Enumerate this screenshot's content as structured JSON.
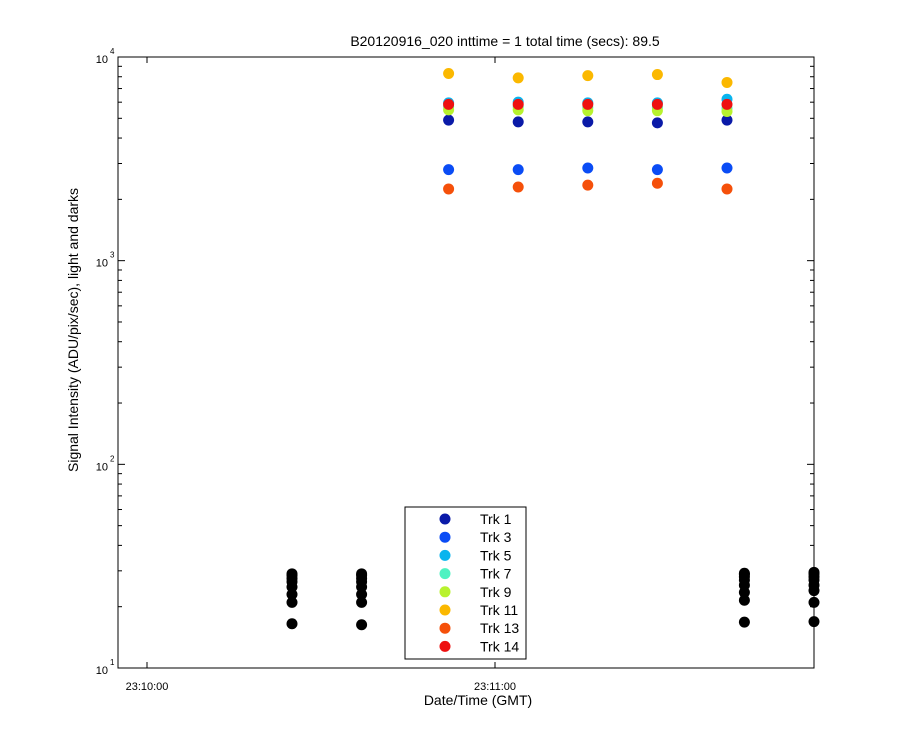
{
  "chart_data": {
    "type": "scatter",
    "title": "B20120916_020 inttime = 1 total time (secs): 89.5",
    "xlabel": "Date/Time (GMT)",
    "ylabel": "Signal Intensity (ADU/pix/sec), light and darks",
    "yscale": "log",
    "ylim": [
      10,
      10000
    ],
    "xlim": [
      "23:09:55",
      "23:11:55"
    ],
    "x_ticks": [
      "23:10:00",
      "23:11:00"
    ],
    "y_ticks": [
      {
        "base": "10",
        "exp": "1",
        "value": 10
      },
      {
        "base": "10",
        "exp": "2",
        "value": 100
      },
      {
        "base": "10",
        "exp": "3",
        "value": 1000
      },
      {
        "base": "10",
        "exp": "4",
        "value": 10000
      }
    ],
    "grid": false,
    "legend_position": "bottom-center",
    "series": [
      {
        "name": "Trk 1",
        "color": "#0a1aa8",
        "x": [
          "23:10:52",
          "23:11:04",
          "23:11:16",
          "23:11:28",
          "23:11:40"
        ],
        "y": [
          4900,
          4800,
          4800,
          4750,
          4900
        ]
      },
      {
        "name": "Trk 3",
        "color": "#0a4cf5",
        "x": [
          "23:10:52",
          "23:11:04",
          "23:11:16",
          "23:11:28",
          "23:11:40"
        ],
        "y": [
          2800,
          2800,
          2850,
          2800,
          2850
        ]
      },
      {
        "name": "Trk 5",
        "color": "#08b4ee",
        "x": [
          "23:10:52",
          "23:11:04",
          "23:11:16",
          "23:11:28",
          "23:11:40"
        ],
        "y": [
          5950,
          6000,
          5950,
          5950,
          6200
        ]
      },
      {
        "name": "Trk 7",
        "color": "#4ff2c2",
        "x": [
          "23:10:52",
          "23:11:04",
          "23:11:16",
          "23:11:28",
          "23:11:40"
        ],
        "y": [
          5700,
          5700,
          5650,
          5650,
          5600
        ]
      },
      {
        "name": "Trk 9",
        "color": "#b8f22e",
        "x": [
          "23:10:52",
          "23:11:04",
          "23:11:16",
          "23:11:28",
          "23:11:40"
        ],
        "y": [
          5500,
          5500,
          5450,
          5450,
          5400
        ]
      },
      {
        "name": "Trk 11",
        "color": "#fbb800",
        "x": [
          "23:10:52",
          "23:11:04",
          "23:11:16",
          "23:11:28",
          "23:11:40"
        ],
        "y": [
          8300,
          7900,
          8100,
          8200,
          7500
        ]
      },
      {
        "name": "Trk 13",
        "color": "#f5500a",
        "x": [
          "23:10:52",
          "23:11:04",
          "23:11:16",
          "23:11:28",
          "23:11:40"
        ],
        "y": [
          2250,
          2300,
          2350,
          2400,
          2250
        ]
      },
      {
        "name": "Trk 14",
        "color": "#ee1010",
        "x": [
          "23:10:52",
          "23:11:04",
          "23:11:16",
          "23:11:28",
          "23:11:40"
        ],
        "y": [
          5850,
          5850,
          5850,
          5850,
          5850
        ]
      },
      {
        "name": "",
        "color": "#000000",
        "x": [
          "23:10:25",
          "23:10:25",
          "23:10:25",
          "23:10:25",
          "23:10:25",
          "23:10:25",
          "23:10:25",
          "23:10:25",
          "23:10:37",
          "23:10:37",
          "23:10:37",
          "23:10:37",
          "23:10:37",
          "23:10:37",
          "23:10:37",
          "23:10:37",
          "23:11:43",
          "23:11:43",
          "23:11:43",
          "23:11:43",
          "23:11:43",
          "23:11:43",
          "23:11:43",
          "23:11:43",
          "23:11:55",
          "23:11:55",
          "23:11:55",
          "23:11:55",
          "23:11:55",
          "23:11:55",
          "23:11:55",
          "23:11:55"
        ],
        "y": [
          16.5,
          21,
          23,
          25,
          26.5,
          27.5,
          28.5,
          29,
          16.3,
          21,
          23,
          25,
          26.5,
          27.5,
          28.5,
          29,
          16.8,
          21.5,
          23.5,
          25.5,
          27,
          28,
          28.8,
          29.2,
          16.9,
          21,
          24,
          25.5,
          27,
          28,
          29,
          29.5
        ]
      }
    ]
  }
}
